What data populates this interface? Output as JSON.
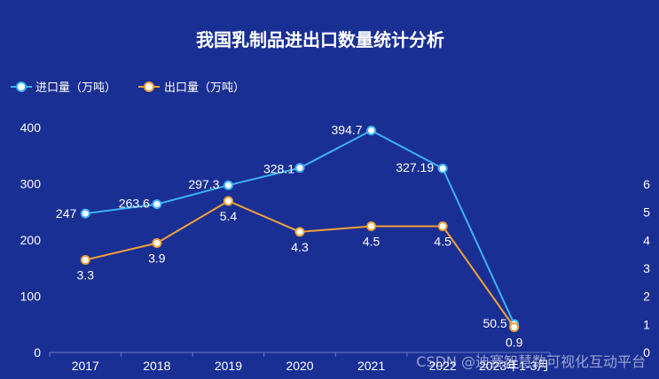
{
  "colors": {
    "background": "#1a2f94",
    "import_line": "#3db2f5",
    "export_line": "#f0a23a",
    "axis": "#6a7ac0"
  },
  "watermark": "CSDN @迪赛智慧数可视化互动平台",
  "chart_data": {
    "type": "line",
    "title": "我国乳制品进出口数量统计分析",
    "legend_position": "top-left",
    "categories": [
      "2017",
      "2018",
      "2019",
      "2020",
      "2021",
      "2022",
      "2023年1-3月"
    ],
    "series": [
      {
        "name": "进口量（万吨）",
        "axis": "left",
        "values": [
          247,
          263.6,
          297.3,
          328.1,
          394.7,
          327.19,
          50.5
        ],
        "labels": [
          "247",
          "263.6",
          "297.3",
          "328.1",
          "394.7",
          "327.19",
          "50.5"
        ]
      },
      {
        "name": "出口量（万吨）",
        "axis": "right",
        "values": [
          3.3,
          3.9,
          5.4,
          4.3,
          4.5,
          4.5,
          0.9
        ],
        "labels": [
          "3.3",
          "3.9",
          "5.4",
          "4.3",
          "4.5",
          "4.5",
          "0.9"
        ]
      }
    ],
    "y_left": {
      "ylim": [
        0,
        400
      ],
      "ticks": [
        "0",
        "100",
        "200",
        "300",
        "400"
      ]
    },
    "y_right": {
      "ylim": [
        0,
        6
      ],
      "ticks": [
        "0",
        "1",
        "2",
        "3",
        "4",
        "5",
        "6"
      ]
    },
    "grid": false
  }
}
